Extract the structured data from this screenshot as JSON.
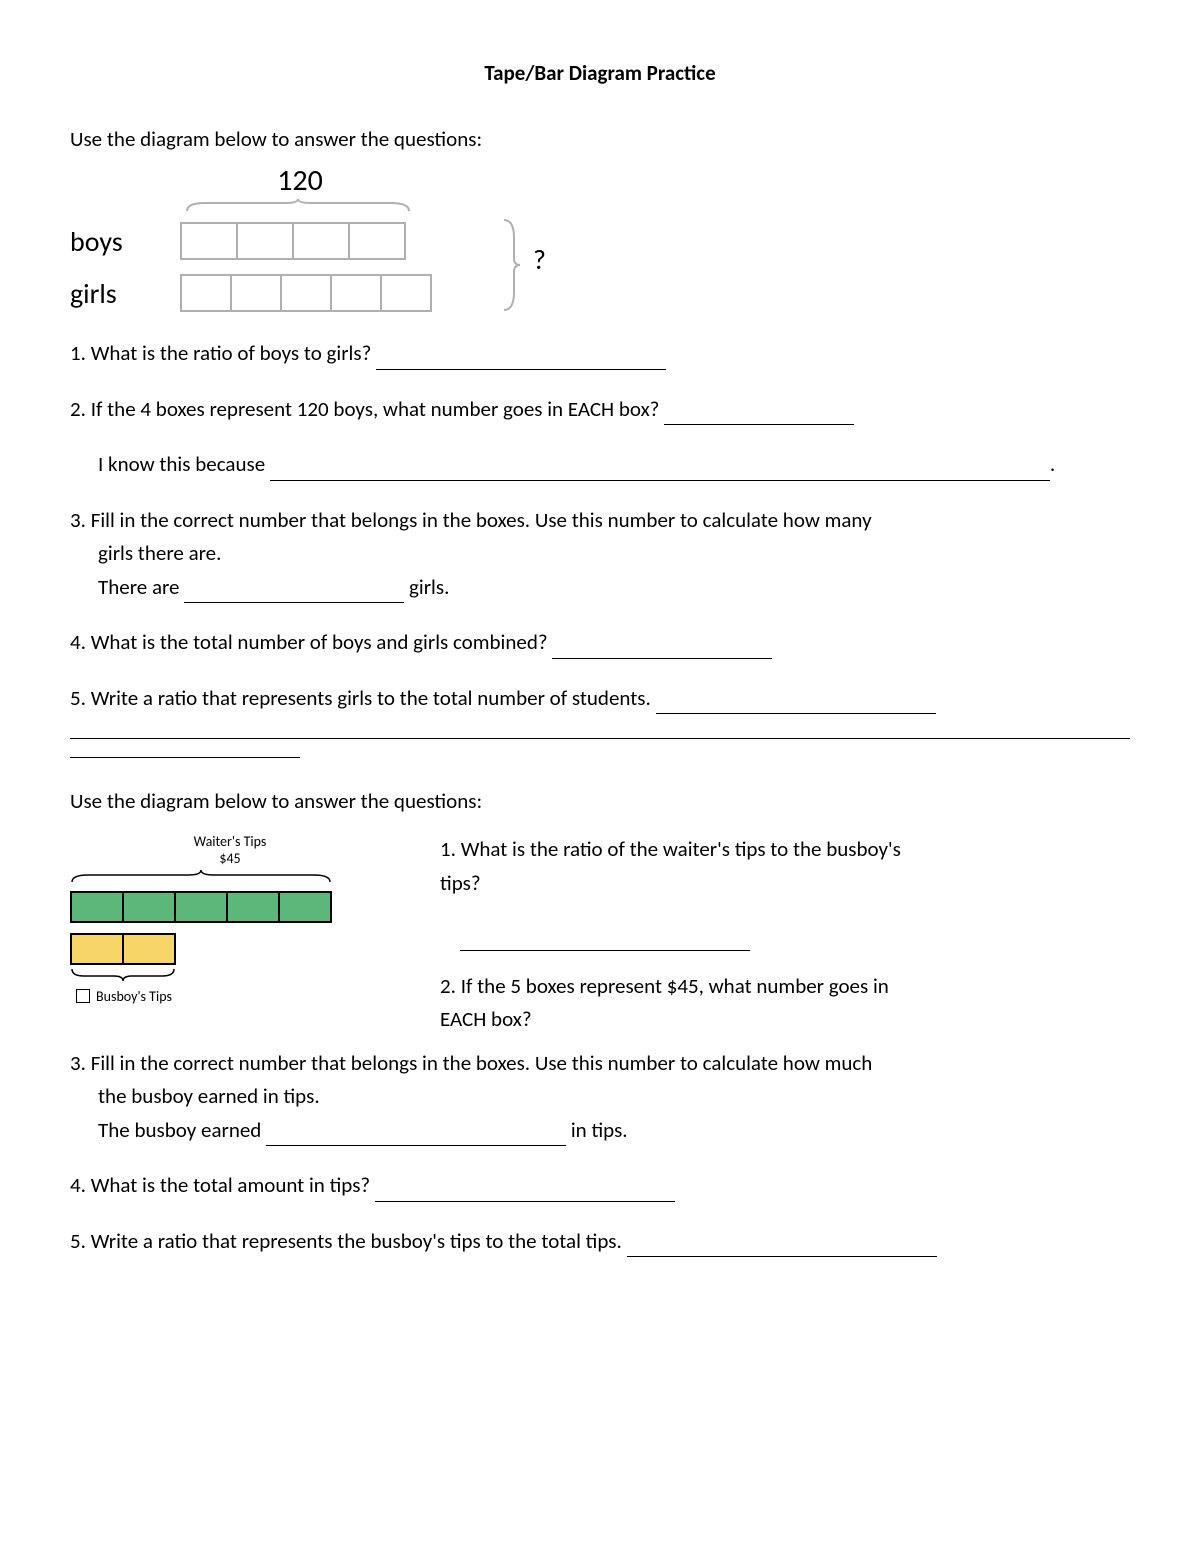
{
  "title": "Tape/Bar Diagram Practice",
  "section1": {
    "instruction": "Use the diagram below to answer the questions:",
    "diagram": {
      "total_label": "120",
      "row1_label": "boys",
      "row1_boxes": 4,
      "row1_box_width": 54,
      "row2_label": "girls",
      "row2_boxes": 5,
      "row2_box_width": 48,
      "question_mark": "?",
      "box_border_color": "#b0b0b0",
      "box_fill": "#ffffff"
    },
    "q1": "1. What is the ratio of boys to girls?",
    "q2": "2. If the 4 boxes represent 120 boys, what number goes in EACH box?",
    "q2b": "I know this because",
    "q3a": "3. Fill in the correct number that belongs in the boxes. Use this number to calculate how many",
    "q3b": "girls there are.",
    "q3c_pre": "There are",
    "q3c_post": "girls.",
    "q4": "4. What is the total number of boys and girls combined?",
    "q5": "5. Write a ratio that represents girls to the total number of students."
  },
  "section2": {
    "instruction": "Use the diagram below to answer the questions:",
    "diagram": {
      "top_label_line1": "Waiter's Tips",
      "top_label_line2": "$45",
      "waiter_boxes": 5,
      "waiter_box_width": 52,
      "waiter_fill": "#5cb77a",
      "busboy_boxes": 2,
      "busboy_box_width": 52,
      "busboy_fill": "#f8d568",
      "border_color": "#000000",
      "bottom_label": "Busboy's Tips"
    },
    "q1a": "1. What is the ratio of the waiter's tips to the busboy's",
    "q1b": "tips?",
    "q2a": "2. If the 5 boxes represent $45, what number goes in",
    "q2b": "EACH box?",
    "q3a": "3. Fill in the correct number that belongs in the boxes. Use this number to calculate how much",
    "q3b": "the busboy earned in tips.",
    "q3c_pre": "The busboy earned",
    "q3c_post": "in tips.",
    "q4": "4. What is the total amount in tips?",
    "q5": "5. Write a ratio that represents the busboy's tips to the total tips."
  }
}
